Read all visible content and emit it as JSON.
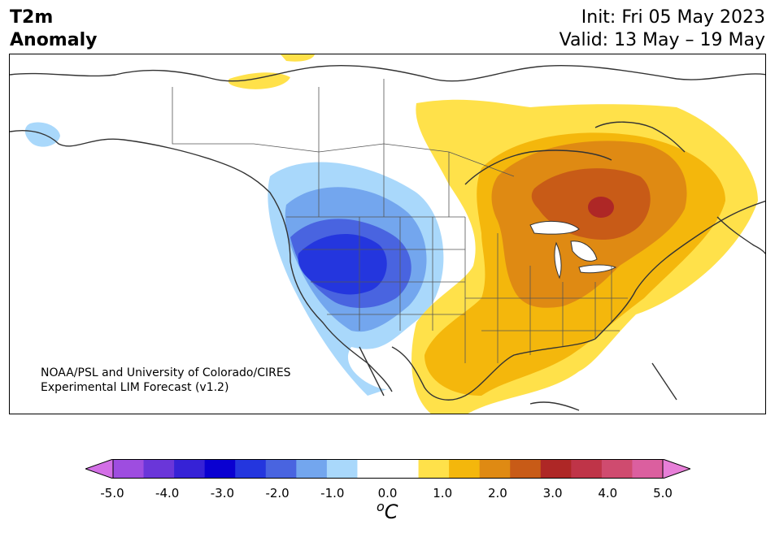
{
  "header": {
    "title_line1": "T2m",
    "title_line2": "Anomaly",
    "init": "Init: Fri 05 May 2023",
    "valid": "Valid: 13 May – 19 May"
  },
  "credit": {
    "line1": "NOAA/PSL and University of Colorado/CIRES",
    "line2": "Experimental LIM Forecast (v1.2)"
  },
  "colorbar": {
    "unit_base": "C",
    "unit_sup": "o",
    "colors": [
      "#d36fe6",
      "#9e4de0",
      "#6a36d9",
      "#3622d6",
      "#0a00d1",
      "#2436de",
      "#4964e0",
      "#73a6ee",
      "#a9d8fb",
      "#ffffff",
      "#ffffff",
      "#ffe14a",
      "#f4b70c",
      "#df8a13",
      "#c85b17",
      "#ae2726",
      "#bf3448",
      "#cf4b6f",
      "#db5f9f",
      "#e77fd8"
    ],
    "ticks": [
      "-5.0",
      "-4.0",
      "-3.0",
      "-2.0",
      "-1.0",
      "0.0",
      "1.0",
      "2.0",
      "3.0",
      "4.0",
      "5.0"
    ]
  }
}
